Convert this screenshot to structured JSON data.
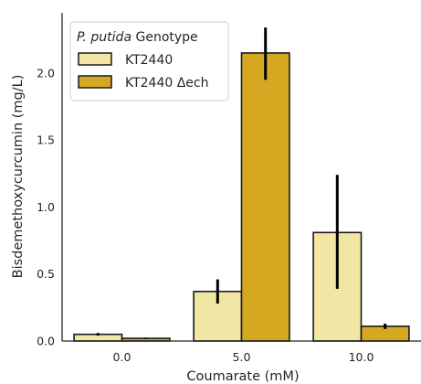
{
  "chart_data": {
    "type": "bar",
    "categories": [
      "0.0",
      "5.0",
      "10.0"
    ],
    "xlabel": "Coumarate (mM)",
    "ylabel": "Bisdemethoxycurcumin (mg/L)",
    "ylim": [
      0,
      2.45
    ],
    "yticks": [
      "0.0",
      "0.5",
      "1.0",
      "1.5",
      "2.0"
    ],
    "grid": false,
    "legend": {
      "title_italic": "P. putida",
      "title_rest": " Genotype",
      "placement": "top-left"
    },
    "series": [
      {
        "name": "KT2440",
        "color": "#f2e6a4",
        "values": [
          0.05,
          0.37,
          0.81
        ],
        "error_low": [
          0.04,
          0.28,
          0.39
        ],
        "error_high": [
          0.06,
          0.46,
          1.24
        ]
      },
      {
        "name": "KT2440 Δech",
        "color": "#d4a921",
        "values": [
          0.02,
          2.15,
          0.11
        ],
        "error_low": [
          0.015,
          1.95,
          0.09
        ],
        "error_high": [
          0.025,
          2.34,
          0.13
        ]
      }
    ]
  }
}
